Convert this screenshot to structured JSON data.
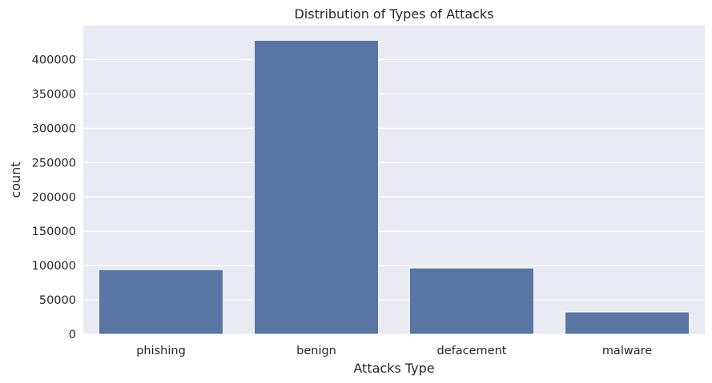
{
  "colors": {
    "plot_bg": "#eaeaf2",
    "bar": "#5975a4",
    "grid": "#ffffff",
    "text": "#262626"
  },
  "chart_data": {
    "type": "bar",
    "title": "Distribution of Types of Attacks",
    "xlabel": "Attacks Type",
    "ylabel": "count",
    "categories": [
      "phishing",
      "benign",
      "defacement",
      "malware"
    ],
    "values": [
      94111,
      428103,
      96457,
      32520
    ],
    "ylim": [
      0,
      449500
    ],
    "yticks": [
      0,
      50000,
      100000,
      150000,
      200000,
      250000,
      300000,
      350000,
      400000
    ],
    "grid": true,
    "legend": "none"
  }
}
